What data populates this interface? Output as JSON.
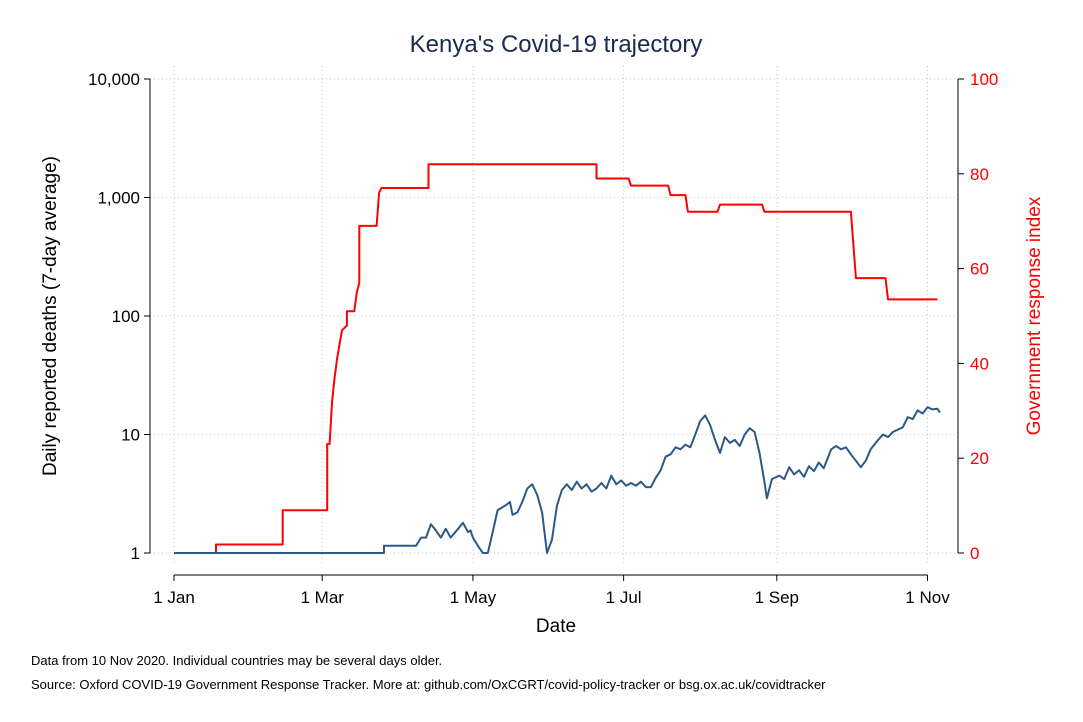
{
  "chart_data": {
    "type": "line",
    "title": "Kenya's Covid-19 trajectory",
    "xlabel": "Date",
    "ylabel_left": "Daily reported deaths (7-day average)",
    "ylabel_right": "Government response index",
    "x_ticks": [
      "1 Jan",
      "1 Mar",
      "1 May",
      "1 Jul",
      "1 Sep",
      "1 Nov"
    ],
    "x_tick_days": [
      0,
      60,
      121,
      182,
      244,
      305
    ],
    "y_left_scale": "log",
    "y_left_ticks": [
      "1",
      "10",
      "100",
      "1,000",
      "10,000"
    ],
    "y_left_tick_values": [
      1,
      10,
      100,
      1000,
      10000
    ],
    "y_right_ticks": [
      "0",
      "20",
      "40",
      "60",
      "80",
      "100"
    ],
    "y_right_tick_values": [
      0,
      20,
      40,
      60,
      80,
      100
    ],
    "ylim_left": [
      1,
      10000
    ],
    "ylim_right": [
      0,
      100
    ],
    "xlim": [
      "1 Jan",
      "10 Nov"
    ],
    "grid": true,
    "series": [
      {
        "axis": "right",
        "color": "#ff0000",
        "points": [
          [
            "1 Jan",
            0
          ],
          [
            "18 Jan",
            0
          ],
          [
            "18 Jan",
            1.8
          ],
          [
            "14 Feb",
            1.8
          ],
          [
            "14 Feb",
            9
          ],
          [
            "3 Mar",
            9
          ],
          [
            "3 Mar",
            23
          ],
          [
            "4 Mar",
            23
          ],
          [
            "5 Mar",
            32
          ],
          [
            "6 Mar",
            37
          ],
          [
            "7 Mar",
            41
          ],
          [
            "8 Mar",
            44
          ],
          [
            "9 Mar",
            47
          ],
          [
            "10 Mar",
            47.5
          ],
          [
            "11 Mar",
            48
          ],
          [
            "11 Mar",
            51
          ],
          [
            "14 Mar",
            51
          ],
          [
            "15 Mar",
            55
          ],
          [
            "16 Mar",
            57
          ],
          [
            "16 Mar",
            69
          ],
          [
            "23 Mar",
            69
          ],
          [
            "24 Mar",
            76
          ],
          [
            "25 Mar",
            77
          ],
          [
            "13 Apr",
            77
          ],
          [
            "13 Apr",
            82
          ],
          [
            "1 May",
            82
          ],
          [
            "31 May",
            82
          ],
          [
            "20 Jun",
            82
          ],
          [
            "20 Jun",
            79
          ],
          [
            "3 Jul",
            79
          ],
          [
            "4 Jul",
            77.5
          ],
          [
            "19 Jul",
            77.5
          ],
          [
            "20 Jul",
            75.5
          ],
          [
            "26 Jul",
            75.5
          ],
          [
            "27 Jul",
            72
          ],
          [
            "8 Aug",
            72
          ],
          [
            "9 Aug",
            73.5
          ],
          [
            "26 Aug",
            73.5
          ],
          [
            "27 Aug",
            72
          ],
          [
            "1 Oct",
            72
          ],
          [
            "3 Oct",
            58
          ],
          [
            "15 Oct",
            58
          ],
          [
            "16 Oct",
            53.5
          ],
          [
            "5 Nov",
            53.5
          ]
        ]
      },
      {
        "axis": "left",
        "color": "#2c5a84",
        "points": [
          [
            "1 Jan",
            1
          ],
          [
            "26 Mar",
            1
          ],
          [
            "26 Mar",
            1.15
          ],
          [
            "8 Apr",
            1.15
          ],
          [
            "10 Apr",
            1.35
          ],
          [
            "12 Apr",
            1.35
          ],
          [
            "14 Apr",
            1.75
          ],
          [
            "16 Apr",
            1.55
          ],
          [
            "18 Apr",
            1.35
          ],
          [
            "20 Apr",
            1.6
          ],
          [
            "22 Apr",
            1.35
          ],
          [
            "25 Apr",
            1.6
          ],
          [
            "27 Apr",
            1.8
          ],
          [
            "29 Apr",
            1.5
          ],
          [
            "30 Apr",
            1.55
          ],
          [
            "1 May",
            1.35
          ],
          [
            "3 May",
            1.15
          ],
          [
            "5 May",
            1
          ],
          [
            "7 May",
            1
          ],
          [
            "9 May",
            1.5
          ],
          [
            "11 May",
            2.3
          ],
          [
            "14 May",
            2.5
          ],
          [
            "16 May",
            2.7
          ],
          [
            "17 May",
            2.1
          ],
          [
            "19 May",
            2.2
          ],
          [
            "21 May",
            2.7
          ],
          [
            "23 May",
            3.5
          ],
          [
            "25 May",
            3.8
          ],
          [
            "27 May",
            3.1
          ],
          [
            "29 May",
            2.2
          ],
          [
            "31 May",
            1
          ],
          [
            "2 Jun",
            1.3
          ],
          [
            "4 Jun",
            2.5
          ],
          [
            "6 Jun",
            3.4
          ],
          [
            "8 Jun",
            3.8
          ],
          [
            "10 Jun",
            3.4
          ],
          [
            "12 Jun",
            4
          ],
          [
            "14 Jun",
            3.5
          ],
          [
            "16 Jun",
            3.8
          ],
          [
            "18 Jun",
            3.3
          ],
          [
            "20 Jun",
            3.5
          ],
          [
            "22 Jun",
            3.9
          ],
          [
            "24 Jun",
            3.5
          ],
          [
            "26 Jun",
            4.5
          ],
          [
            "28 Jun",
            3.8
          ],
          [
            "30 Jun",
            4.1
          ],
          [
            "2 Jul",
            3.7
          ],
          [
            "4 Jul",
            3.9
          ],
          [
            "6 Jul",
            3.7
          ],
          [
            "8 Jul",
            4
          ],
          [
            "10 Jul",
            3.6
          ],
          [
            "12 Jul",
            3.6
          ],
          [
            "14 Jul",
            4.3
          ],
          [
            "16 Jul",
            5
          ],
          [
            "18 Jul",
            6.5
          ],
          [
            "20 Jul",
            6.8
          ],
          [
            "22 Jul",
            7.8
          ],
          [
            "24 Jul",
            7.5
          ],
          [
            "26 Jul",
            8.2
          ],
          [
            "28 Jul",
            7.8
          ],
          [
            "30 Jul",
            10
          ],
          [
            "1 Aug",
            13
          ],
          [
            "3 Aug",
            14.5
          ],
          [
            "5 Aug",
            12
          ],
          [
            "7 Aug",
            9
          ],
          [
            "9 Aug",
            7
          ],
          [
            "11 Aug",
            9.5
          ],
          [
            "13 Aug",
            8.5
          ],
          [
            "15 Aug",
            9
          ],
          [
            "17 Aug",
            8
          ],
          [
            "19 Aug",
            10
          ],
          [
            "21 Aug",
            11.3
          ],
          [
            "23 Aug",
            10.5
          ],
          [
            "25 Aug",
            7
          ],
          [
            "27 Aug",
            4
          ],
          [
            "28 Aug",
            2.9
          ],
          [
            "30 Aug",
            4.2
          ],
          [
            "2 Sep",
            4.5
          ],
          [
            "4 Sep",
            4.2
          ],
          [
            "6 Sep",
            5.3
          ],
          [
            "8 Sep",
            4.6
          ],
          [
            "10 Sep",
            5
          ],
          [
            "12 Sep",
            4.4
          ],
          [
            "14 Sep",
            5.4
          ],
          [
            "16 Sep",
            4.9
          ],
          [
            "18 Sep",
            5.8
          ],
          [
            "20 Sep",
            5.2
          ],
          [
            "23 Sep",
            7.5
          ],
          [
            "25 Sep",
            8
          ],
          [
            "27 Sep",
            7.5
          ],
          [
            "29 Sep",
            7.8
          ],
          [
            "1 Oct",
            6.8
          ],
          [
            "3 Oct",
            6
          ],
          [
            "5 Oct",
            5.3
          ],
          [
            "7 Oct",
            6
          ],
          [
            "9 Oct",
            7.5
          ],
          [
            "12 Oct",
            9
          ],
          [
            "14 Oct",
            10
          ],
          [
            "16 Oct",
            9.5
          ],
          [
            "18 Oct",
            10.5
          ],
          [
            "20 Oct",
            11
          ],
          [
            "22 Oct",
            11.5
          ],
          [
            "24 Oct",
            14
          ],
          [
            "26 Oct",
            13.5
          ],
          [
            "28 Oct",
            16
          ],
          [
            "30 Oct",
            15
          ],
          [
            "1 Nov",
            17
          ],
          [
            "3 Nov",
            16.3
          ],
          [
            "5 Nov",
            16.5
          ],
          [
            "6 Nov",
            15.3
          ]
        ]
      }
    ]
  },
  "footnotes": [
    "Data from 10 Nov 2020. Individual countries may be several days older.",
    "Source: Oxford COVID-19 Government Response Tracker. More at: github.com/OxCGRT/covid-policy-tracker or bsg.ox.ac.uk/covidtracker"
  ]
}
